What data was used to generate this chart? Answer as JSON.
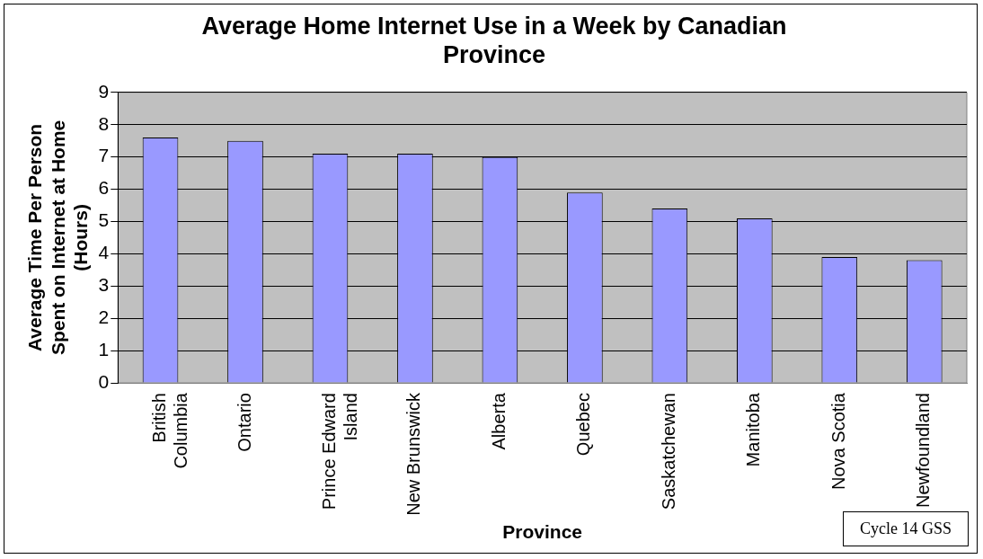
{
  "chart_data": {
    "type": "bar",
    "title": "Average Home Internet Use in a Week by Canadian Province",
    "xlabel": "Province",
    "ylabel": "Average Time Per Person Spent on Internet at Home (Hours)",
    "categories": [
      "British Columbia",
      "Ontario",
      "Prince Edward Island",
      "New Brunswick",
      "Alberta",
      "Quebec",
      "Saskatchewan",
      "Manitoba",
      "Nova Scotia",
      "Newfoundland"
    ],
    "values": [
      7.6,
      7.5,
      7.1,
      7.1,
      7.0,
      5.9,
      5.4,
      5.1,
      3.9,
      3.8
    ],
    "color": "#9999ff",
    "ylim": [
      0,
      9
    ],
    "yticks": [
      0,
      1,
      2,
      3,
      4,
      5,
      6,
      7,
      8,
      9
    ],
    "grid": "y",
    "legend": false,
    "annotations": [
      "Cycle 14 GSS"
    ]
  }
}
